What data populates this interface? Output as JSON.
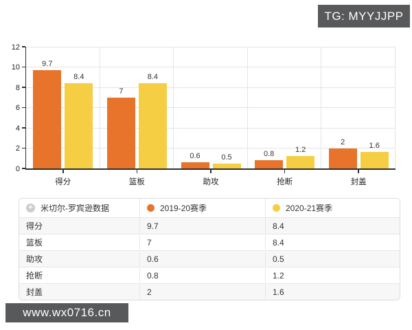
{
  "badges": {
    "tg": "TG: MYYJJPP",
    "watermark": "www.wx0716.cn"
  },
  "colors": {
    "series1": "#e8742c",
    "series2": "#f5ce44",
    "badge_bg": "#58595b",
    "grid": "#e4e4e4",
    "axis": "#2f2f2f"
  },
  "chart_data": {
    "type": "bar",
    "title": "",
    "categories": [
      "得分",
      "篮板",
      "助攻",
      "抢断",
      "封盖"
    ],
    "series": [
      {
        "name": "2019-20赛季",
        "color": "#e8742c",
        "values": [
          9.7,
          7,
          0.6,
          0.8,
          2
        ]
      },
      {
        "name": "2020-21赛季",
        "color": "#f5ce44",
        "values": [
          8.4,
          8.4,
          0.5,
          1.2,
          1.6
        ]
      }
    ],
    "xlabel": "",
    "ylabel": "",
    "ylim": [
      0,
      12
    ],
    "ytick_step": 2,
    "grid": true,
    "legend_position": "table-header",
    "value_labels": [
      "9.7",
      "7",
      "0.6",
      "0.8",
      "2",
      "8.4",
      "8.4",
      "0.5",
      "1.2",
      "1.6"
    ]
  },
  "table": {
    "title_column": "米切尔-罗宾逊数据",
    "title_icon": "+",
    "columns": [
      "米切尔-罗宾逊数据",
      "2019-20赛季",
      "2020-21赛季"
    ],
    "rows": [
      {
        "label": "得分",
        "values": [
          "9.7",
          "8.4"
        ]
      },
      {
        "label": "篮板",
        "values": [
          "7",
          "8.4"
        ]
      },
      {
        "label": "助攻",
        "values": [
          "0.6",
          "0.5"
        ]
      },
      {
        "label": "抢断",
        "values": [
          "0.8",
          "1.2"
        ]
      },
      {
        "label": "封盖",
        "values": [
          "2",
          "1.6"
        ]
      }
    ]
  }
}
